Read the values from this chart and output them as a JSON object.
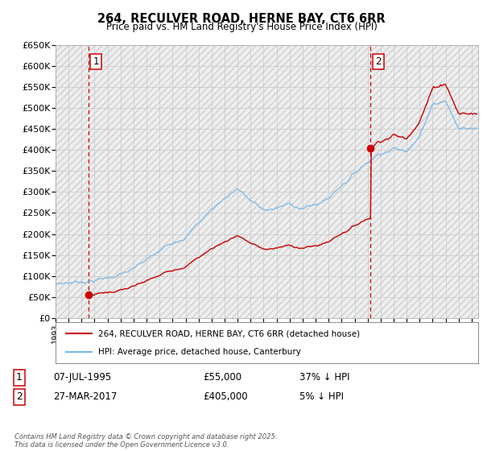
{
  "title1": "264, RECULVER ROAD, HERNE BAY, CT6 6RR",
  "title2": "Price paid vs. HM Land Registry's House Price Index (HPI)",
  "ylim": [
    0,
    650000
  ],
  "yticks": [
    0,
    50000,
    100000,
    150000,
    200000,
    250000,
    300000,
    350000,
    400000,
    450000,
    500000,
    550000,
    600000,
    650000
  ],
  "ytick_labels": [
    "£0",
    "£50K",
    "£100K",
    "£150K",
    "£200K",
    "£250K",
    "£300K",
    "£350K",
    "£400K",
    "£450K",
    "£500K",
    "£550K",
    "£600K",
    "£650K"
  ],
  "sale1_year": 1995.51,
  "sale1_price": 55000,
  "sale2_year": 2017.23,
  "sale2_price": 405000,
  "hpi_color": "#7ab8e8",
  "price_color": "#cc0000",
  "vline_color": "#cc0000",
  "bg_hatch_color": "#e8e8e8",
  "grid_color": "#c8c8c8",
  "legend_label1": "264, RECULVER ROAD, HERNE BAY, CT6 6RR (detached house)",
  "legend_label2": "HPI: Average price, detached house, Canterbury",
  "ann1_date": "07-JUL-1995",
  "ann1_price": "£55,000",
  "ann1_hpi": "37% ↓ HPI",
  "ann2_date": "27-MAR-2017",
  "ann2_price": "£405,000",
  "ann2_hpi": "5% ↓ HPI",
  "footer": "Contains HM Land Registry data © Crown copyright and database right 2025.\nThis data is licensed under the Open Government Licence v3.0.",
  "xmin": 1993,
  "xmax": 2025.5
}
